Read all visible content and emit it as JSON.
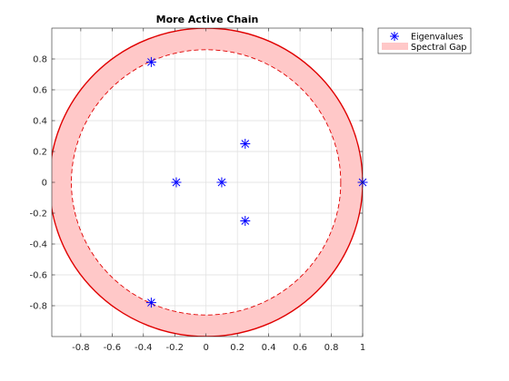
{
  "chart_data": {
    "type": "scatter",
    "title": "More Active Chain",
    "xlabel": "",
    "ylabel": "",
    "xlim": [
      -0.985,
      1.0
    ],
    "ylim": [
      -1.0,
      1.0
    ],
    "xticks": [
      -0.8,
      -0.6,
      -0.4,
      -0.2,
      0,
      0.2,
      0.4,
      0.6,
      0.8,
      1
    ],
    "xtick_labels": [
      "-0.8",
      "-0.6",
      "-0.4",
      "-0.2",
      "0",
      "0.2",
      "0.4",
      "0.6",
      "0.8",
      "1"
    ],
    "yticks": [
      -0.8,
      -0.6,
      -0.4,
      -0.2,
      0,
      0.2,
      0.4,
      0.6,
      0.8
    ],
    "ytick_labels": [
      "-0.8",
      "-0.6",
      "-0.4",
      "-0.2",
      "0",
      "0.2",
      "0.4",
      "0.6",
      "0.8"
    ],
    "grid": true,
    "legend_position": "outside-top-right",
    "series": [
      {
        "name": "Eigenvalues",
        "marker": "asterisk",
        "color": "#0000ff",
        "x": [
          1.0,
          0.25,
          0.25,
          0.1,
          -0.19,
          -0.35,
          -0.35
        ],
        "y": [
          0.0,
          0.25,
          -0.25,
          0.0,
          0.0,
          0.78,
          -0.78
        ]
      },
      {
        "name": "Spectral Gap",
        "kind": "annulus",
        "fill_color": "#ffc8c8",
        "edge_color": "#e00000",
        "outer_radius": 1.0,
        "inner_radius": 0.86
      }
    ]
  }
}
